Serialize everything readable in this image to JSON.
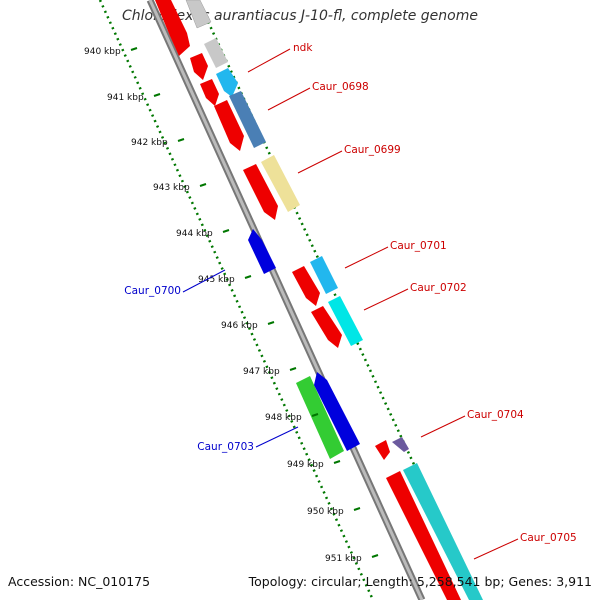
{
  "title": "Chloroflexus aurantiacus J-10-fl, complete genome",
  "footer": {
    "accession": "Accession: NC_010175",
    "topology": "Topology: circular; Length: 5,258,541 bp; Genes: 3,911"
  },
  "scale_labels": [
    "940 kbp",
    "941 kbp",
    "942 kbp",
    "943 kbp",
    "944 kbp",
    "945 kbp",
    "946 kbp",
    "947 kbp",
    "948 kbp",
    "949 kbp",
    "950 kbp",
    "951 kbp"
  ],
  "gene_labels": [
    {
      "text": "ndk",
      "strand": "plus"
    },
    {
      "text": "Caur_0698",
      "strand": "plus"
    },
    {
      "text": "Caur_0699",
      "strand": "plus"
    },
    {
      "text": "Caur_0700",
      "strand": "minus"
    },
    {
      "text": "Caur_0701",
      "strand": "plus"
    },
    {
      "text": "Caur_0702",
      "strand": "plus"
    },
    {
      "text": "Caur_0703",
      "strand": "minus"
    },
    {
      "text": "Caur_0704",
      "strand": "plus"
    },
    {
      "text": "Caur_0705",
      "strand": "plus"
    }
  ],
  "colors": {
    "plus_label": "#cc0000",
    "minus_label": "#0000cc",
    "backbone": "#888888",
    "scale": "#007700",
    "red": "#ee0000",
    "gray": "#c8c8c8",
    "sky": "#22b7ee",
    "steel": "#4a7fb5",
    "khaki": "#eee199",
    "blue": "#0000dd",
    "cyan": "#00e6e6",
    "green": "#33cc33",
    "purple": "#6b5a9e",
    "teal": "#26c9c9"
  }
}
